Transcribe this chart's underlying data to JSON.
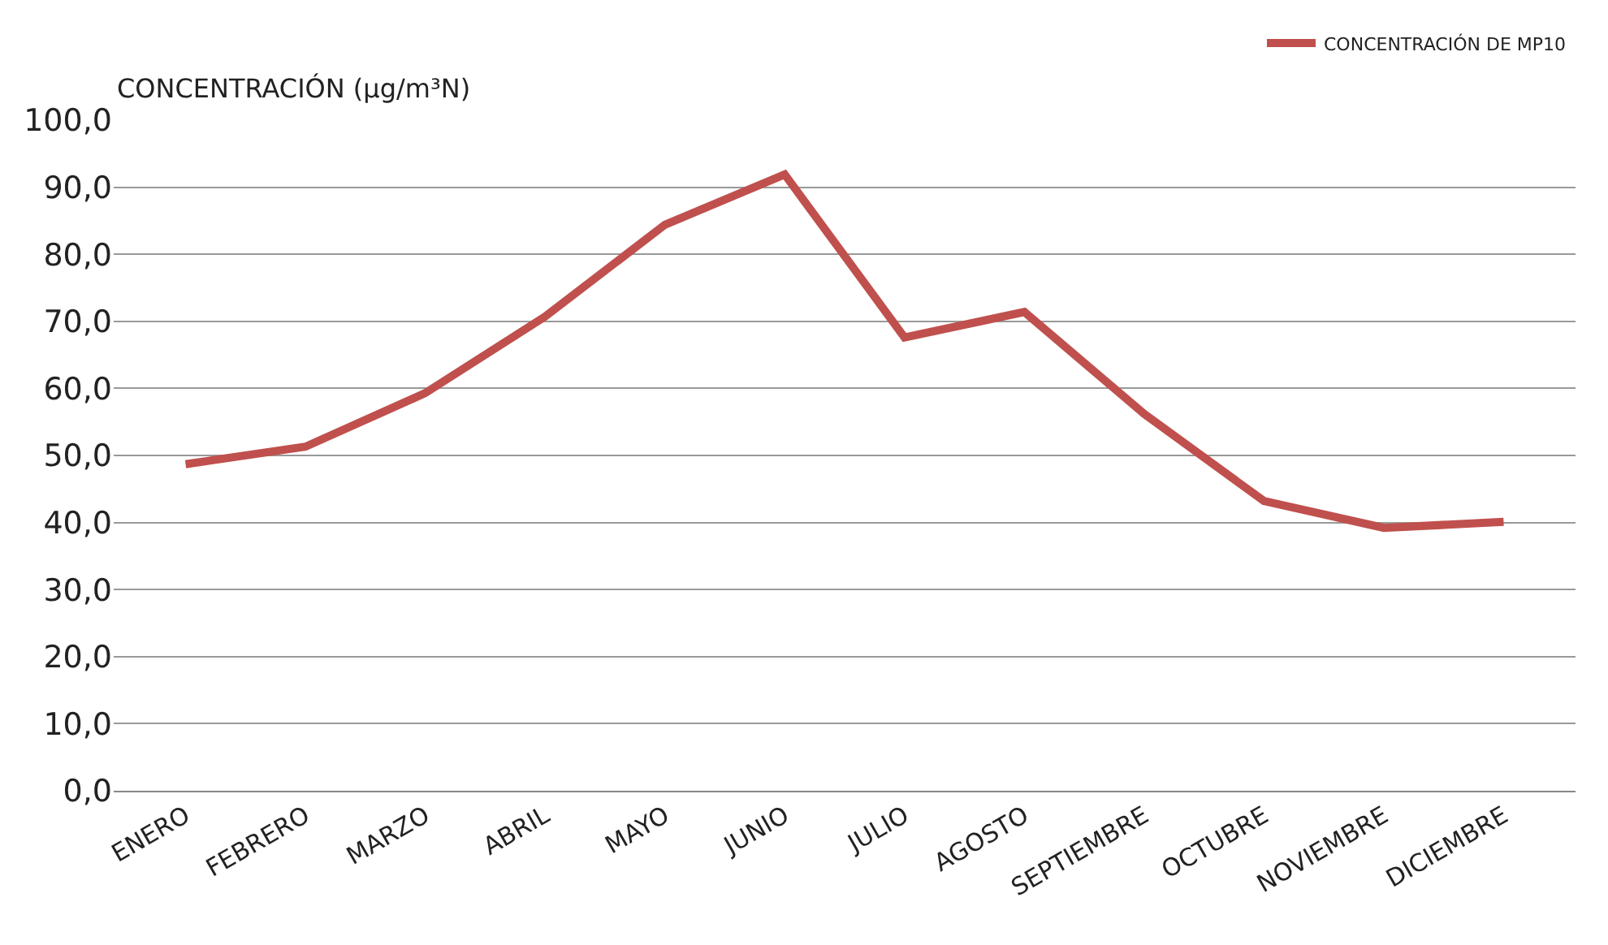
{
  "chart_data": {
    "type": "line",
    "ylabel": "CONCENTRACIÓN (µg/m³N)",
    "categories": [
      "ENERO",
      "FEBRERO",
      "MARZO",
      "ABRIL",
      "MAYO",
      "JUNIO",
      "JULIO",
      "AGOSTO",
      "SEPTIEMBRE",
      "OCTUBRE",
      "NOVIEMBRE",
      "DICIEMBRE"
    ],
    "series": [
      {
        "name": "CONCENTRACIÓN DE MP10",
        "color": "#c0504d",
        "values": [
          48.7,
          51.3,
          59.3,
          70.7,
          84.4,
          91.9,
          67.6,
          71.4,
          56.2,
          43.2,
          39.2,
          40.1
        ]
      }
    ],
    "ylim": [
      0,
      100
    ],
    "yticks": [
      {
        "value": 0,
        "label": "0,0"
      },
      {
        "value": 10,
        "label": "10,0"
      },
      {
        "value": 20,
        "label": "20,0"
      },
      {
        "value": 30,
        "label": "30,0"
      },
      {
        "value": 40,
        "label": "40,0"
      },
      {
        "value": 50,
        "label": "50,0"
      },
      {
        "value": 60,
        "label": "60,0"
      },
      {
        "value": 70,
        "label": "70,0"
      },
      {
        "value": 80,
        "label": "80,0"
      },
      {
        "value": 90,
        "label": "90,0"
      },
      {
        "value": 100,
        "label": "100,0"
      }
    ],
    "grid": "y",
    "legend": "top right",
    "marker": "none",
    "line_style": "solid"
  }
}
